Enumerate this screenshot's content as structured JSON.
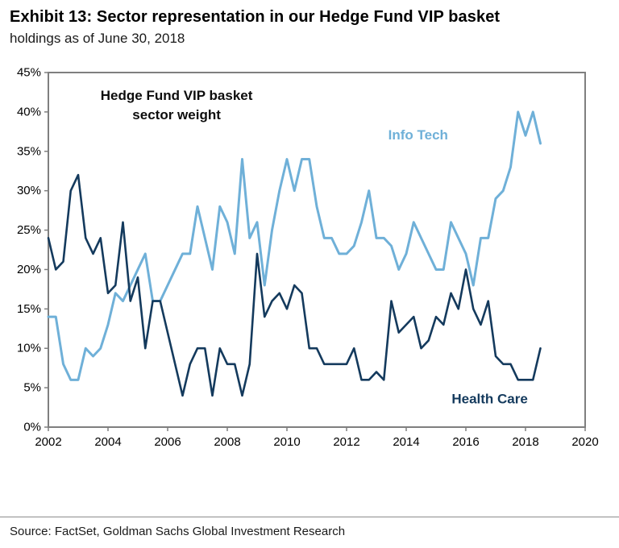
{
  "header": {
    "title": "Exhibit 13: Sector representation in our Hedge Fund VIP basket",
    "subtitle": "holdings as of June 30, 2018"
  },
  "footer": {
    "source": "Source: FactSet, Goldman Sachs Global Investment Research"
  },
  "colors": {
    "axis": "#7f7f7f",
    "info_tech": "#6FB0D8",
    "health_care": "#143A5D"
  },
  "chart_data": {
    "type": "line",
    "xlim": [
      2002,
      2020
    ],
    "ylim": [
      0,
      45
    ],
    "x_ticks": [
      2002,
      2004,
      2006,
      2008,
      2010,
      2012,
      2014,
      2016,
      2018,
      2020
    ],
    "y_ticks": [
      0,
      5,
      10,
      15,
      20,
      25,
      30,
      35,
      40,
      45
    ],
    "y_tick_suffix": "%",
    "grid": false,
    "legend_position": "inline-labels",
    "annotation": {
      "lines": [
        "Hedge Fund VIP basket",
        "sector weight"
      ],
      "x": 2006.3,
      "y": 41.5
    },
    "series_labels": [
      {
        "series": "Info Tech",
        "x": 2014.4,
        "y": 36.5
      },
      {
        "series": "Health Care",
        "x": 2016.8,
        "y": 3.0
      }
    ],
    "x": [
      2002,
      2002.25,
      2002.5,
      2002.75,
      2003,
      2003.25,
      2003.5,
      2003.75,
      2004,
      2004.25,
      2004.5,
      2004.75,
      2005,
      2005.25,
      2005.5,
      2005.75,
      2006,
      2006.25,
      2006.5,
      2006.75,
      2007,
      2007.25,
      2007.5,
      2007.75,
      2008,
      2008.25,
      2008.5,
      2008.75,
      2009,
      2009.25,
      2009.5,
      2009.75,
      2010,
      2010.25,
      2010.5,
      2010.75,
      2011,
      2011.25,
      2011.5,
      2011.75,
      2012,
      2012.25,
      2012.5,
      2012.75,
      2013,
      2013.25,
      2013.5,
      2013.75,
      2014,
      2014.25,
      2014.5,
      2014.75,
      2015,
      2015.25,
      2015.5,
      2015.75,
      2016,
      2016.25,
      2016.5,
      2016.75,
      2017,
      2017.25,
      2017.5,
      2017.75,
      2018,
      2018.25,
      2018.5
    ],
    "series": [
      {
        "name": "Info Tech",
        "color": "#6FB0D8",
        "width": 3,
        "values": [
          14,
          14,
          8,
          6,
          6,
          10,
          9,
          10,
          13,
          17,
          16,
          18,
          20,
          22,
          16,
          16,
          18,
          20,
          22,
          22,
          28,
          24,
          20,
          28,
          26,
          22,
          34,
          24,
          26,
          18,
          25,
          30,
          34,
          30,
          34,
          34,
          28,
          24,
          24,
          22,
          22,
          23,
          26,
          30,
          24,
          24,
          23,
          20,
          22,
          26,
          24,
          22,
          20,
          20,
          26,
          24,
          22,
          18,
          24,
          24,
          29,
          30,
          33,
          40,
          37,
          40,
          36
        ]
      },
      {
        "name": "Health Care",
        "color": "#143A5D",
        "width": 2.6,
        "values": [
          24,
          20,
          21,
          30,
          32,
          24,
          22,
          24,
          17,
          18,
          26,
          16,
          19,
          10,
          16,
          16,
          12,
          8,
          4,
          8,
          10,
          10,
          4,
          10,
          8,
          8,
          4,
          8,
          22,
          14,
          16,
          17,
          15,
          18,
          17,
          10,
          10,
          8,
          8,
          8,
          8,
          10,
          6,
          6,
          7,
          6,
          16,
          12,
          13,
          14,
          10,
          11,
          14,
          13,
          17,
          15,
          20,
          15,
          13,
          16,
          9,
          8,
          8,
          6,
          6,
          6,
          10
        ]
      }
    ]
  }
}
